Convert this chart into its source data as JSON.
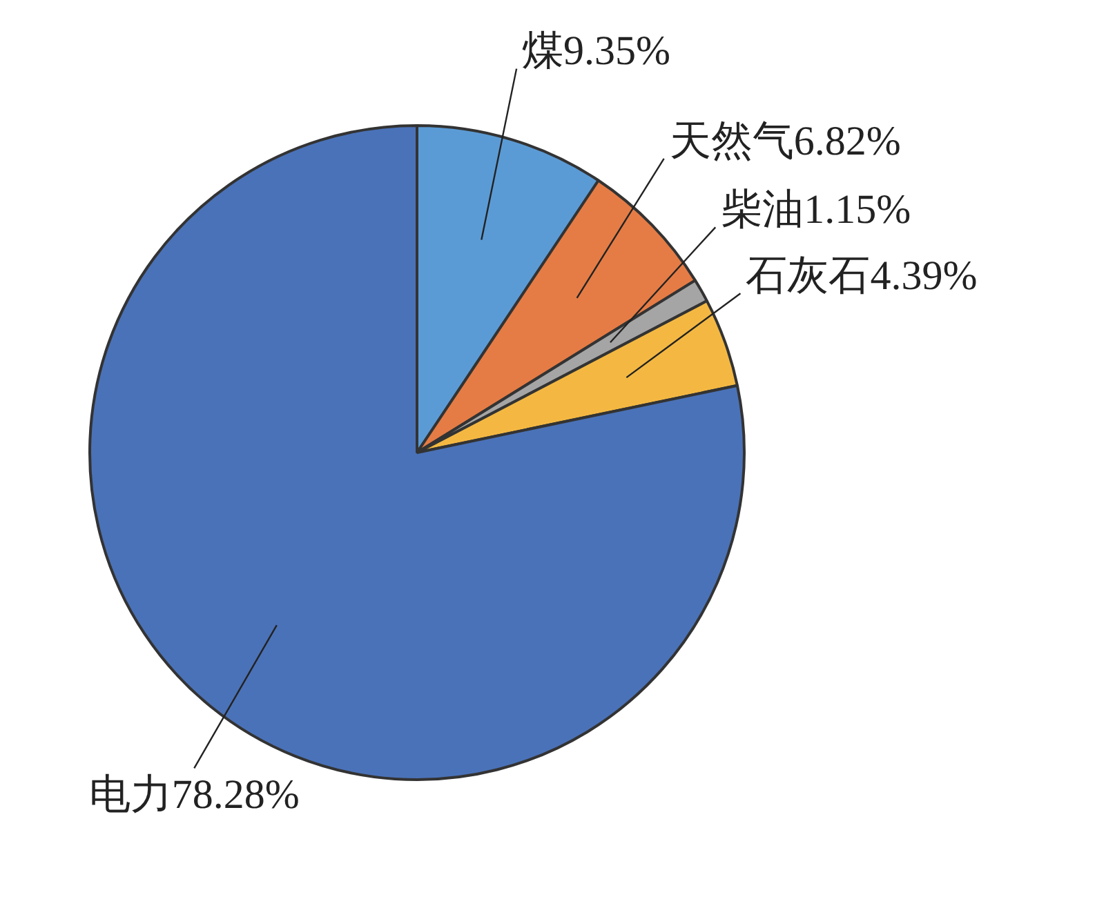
{
  "chart_data": {
    "type": "pie",
    "categories": [
      "煤",
      "天然气",
      "柴油",
      "石灰石",
      "电力"
    ],
    "values": [
      9.35,
      6.82,
      1.15,
      4.39,
      78.28
    ],
    "value_labels": [
      "9.35%",
      "6.82%",
      "1.15%",
      "4.39%",
      "78.28%"
    ],
    "colors": [
      "#5b9bd5",
      "#e57c45",
      "#a5a5a5",
      "#f4b842",
      "#4a72b8"
    ],
    "legend": false
  }
}
